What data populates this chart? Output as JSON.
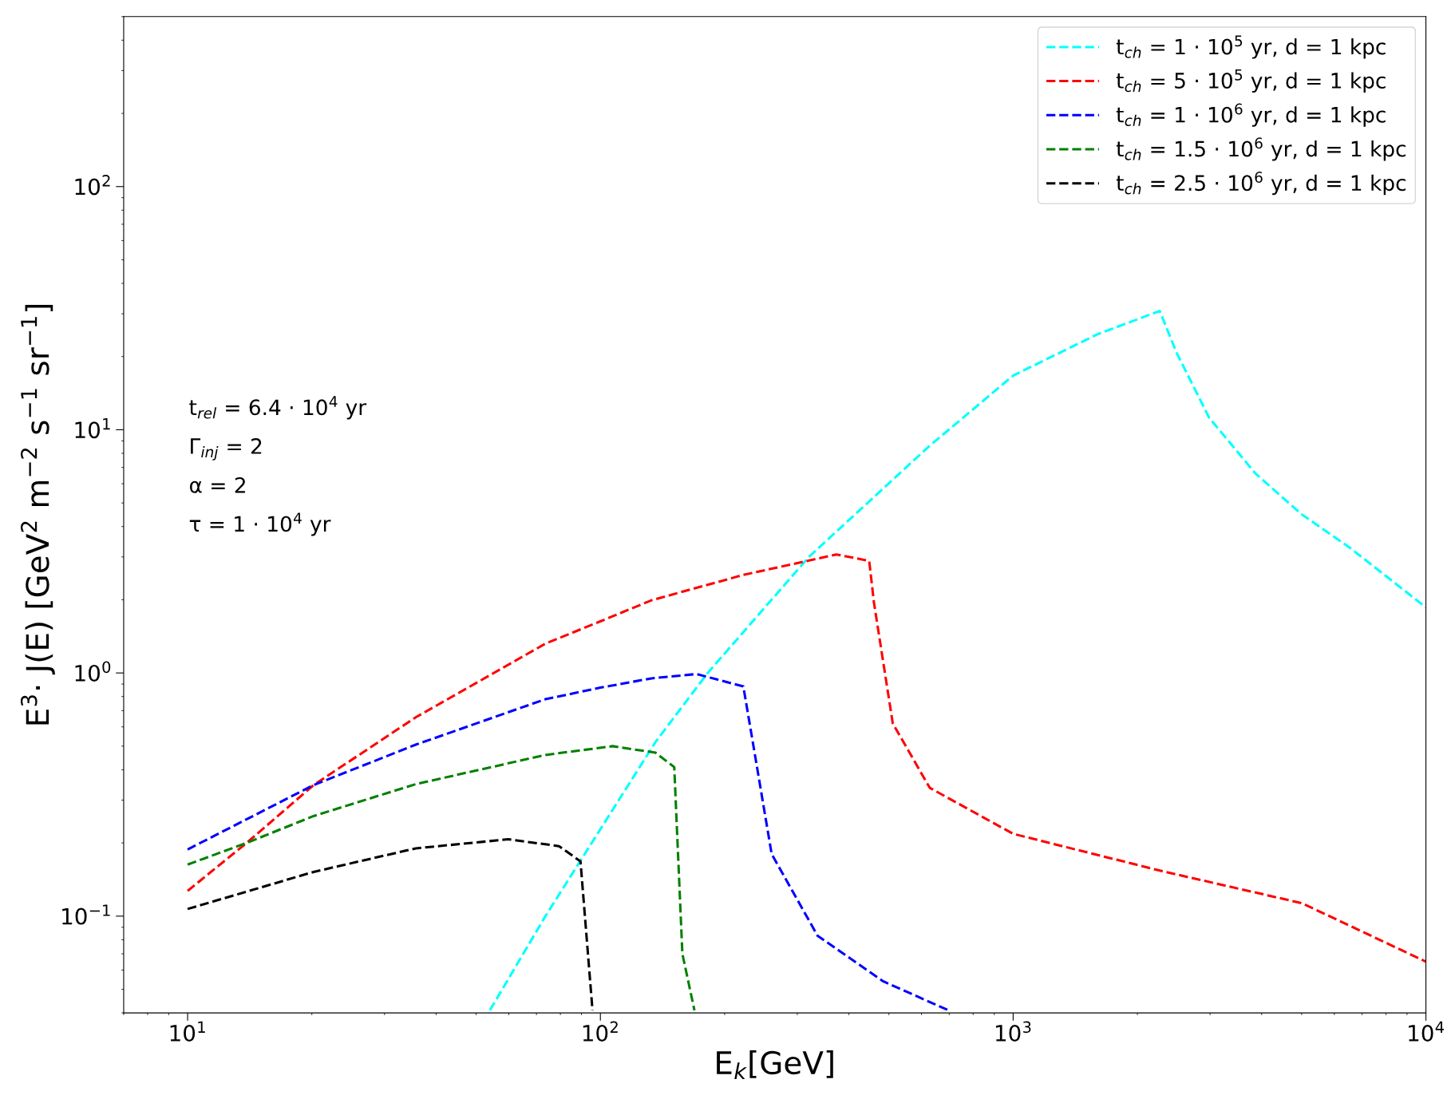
{
  "chart_data": {
    "type": "line",
    "log": "xy",
    "xlabel": "E$_{k}$[GeV]",
    "ylabel": "E$^{3}$· J(E) [GeV$^{2}$ m$^{−2}$ s$^{−1}$ sr$^{−1}$]",
    "xlim": [
      7,
      10000
    ],
    "ylim": [
      0.04,
      500
    ],
    "xticks": [
      {
        "value": 10,
        "label": "10$^{1}$"
      },
      {
        "value": 100,
        "label": "10$^{2}$"
      },
      {
        "value": 1000,
        "label": "10$^{3}$"
      },
      {
        "value": 10000,
        "label": "10$^{4}$"
      }
    ],
    "yticks": [
      {
        "value": 0.1,
        "label": "10$^{−1}$"
      },
      {
        "value": 1,
        "label": "10$^{0}$"
      },
      {
        "value": 10,
        "label": "10$^{1}$"
      },
      {
        "value": 100,
        "label": "10$^{2}$"
      }
    ],
    "line_style": "dashed",
    "legend": "top right",
    "grid": false,
    "annotations": [
      "t$_{rel}$ = 6.4 · 10$^{4}$ yr",
      "Γ$_{inj}$ = 2",
      "α = 2",
      "τ = 1 · 10$^{4}$ yr"
    ],
    "series": [
      {
        "name": "t$_{ch}$ = 1 · 10$^{5}$ yr, d = 1 kpc",
        "color": "#00ffff",
        "x": [
          54,
          73.6,
          136,
          182,
          320,
          628,
          1000,
          1600,
          2265,
          2490,
          2985,
          3867,
          5010,
          6500,
          10000
        ],
        "values": [
          0.041,
          0.1,
          0.52,
          1.0,
          3.0,
          8.6,
          16.7,
          24.7,
          30.8,
          20.7,
          11.2,
          6.6,
          4.48,
          3.3,
          1.86
        ]
      },
      {
        "name": "t$_{ch}$ = 5 · 10$^{5}$ yr, d = 1 kpc",
        "color": "#ff0000",
        "x": [
          10,
          13.9,
          20.2,
          35.7,
          73.6,
          100,
          133,
          222,
          373,
          448,
          460,
          511,
          628,
          1000,
          2300,
          5010,
          10000
        ],
        "values": [
          0.127,
          0.2,
          0.346,
          0.657,
          1.32,
          1.63,
          1.99,
          2.53,
          3.07,
          2.89,
          1.95,
          0.62,
          0.337,
          0.218,
          0.153,
          0.113,
          0.065
        ]
      },
      {
        "name": "t$_{ch}$ = 1 · 10$^{6}$ yr, d = 1 kpc",
        "color": "#0000ff",
        "x": [
          10,
          20.2,
          35.7,
          73.6,
          100,
          133,
          171,
          222,
          234,
          260,
          336,
          484,
          697
        ],
        "values": [
          0.188,
          0.346,
          0.507,
          0.78,
          0.87,
          0.95,
          0.99,
          0.88,
          0.52,
          0.18,
          0.083,
          0.054,
          0.041
        ]
      },
      {
        "name": "t$_{ch}$ = 1.5 · 10$^{6}$ yr, d = 1 kpc",
        "color": "#008000",
        "x": [
          10,
          13.9,
          20.2,
          35.7,
          73.6,
          107,
          136,
          151,
          158,
          169
        ],
        "values": [
          0.163,
          0.2,
          0.258,
          0.349,
          0.46,
          0.5,
          0.47,
          0.41,
          0.07,
          0.041
        ]
      },
      {
        "name": "t$_{ch}$ = 2.5 · 10$^{6}$ yr, d = 1 kpc",
        "color": "#000000",
        "x": [
          10,
          20.2,
          35.7,
          59.8,
          79.4,
          89.5,
          95.7
        ],
        "values": [
          0.107,
          0.152,
          0.19,
          0.207,
          0.194,
          0.168,
          0.041
        ]
      }
    ]
  }
}
